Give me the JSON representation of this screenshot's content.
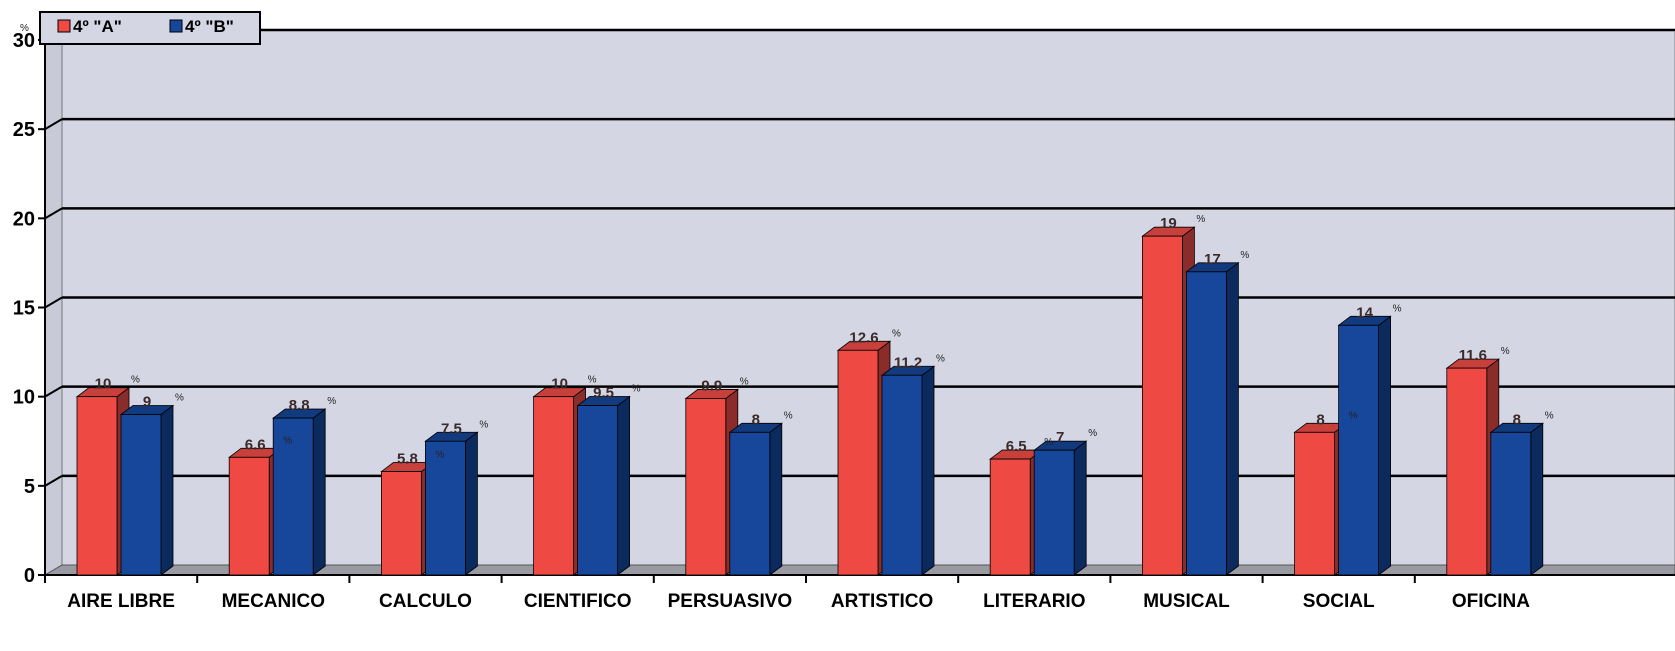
{
  "chart_data": {
    "type": "bar",
    "ylabel": "%",
    "ylim": [
      0,
      30
    ],
    "yticks": [
      0,
      5,
      10,
      15,
      20,
      25,
      30
    ],
    "grid": true,
    "legend_position": "top-left",
    "categories": [
      "AIRE LIBRE",
      "MECANICO",
      "CALCULO",
      "CIENTIFICO",
      "PERSUASIVO",
      "ARTISTICO",
      "LITERARIO",
      "MUSICAL",
      "SOCIAL",
      "OFICINA"
    ],
    "series": [
      {
        "name": "4º \"A\"",
        "color": "#ee4a43",
        "top_color": "#c8403c",
        "side_color": "#8a2c2a",
        "values": [
          10,
          6.6,
          5.8,
          10,
          9.9,
          12.6,
          6.5,
          19,
          8,
          11.6
        ],
        "labels": [
          "10",
          "6.6",
          "5.8",
          "10",
          "9.9",
          "12.6",
          "6.5",
          "19",
          "8",
          "11.6"
        ]
      },
      {
        "name": "4º \"B\"",
        "color": "#17479a",
        "top_color": "#123a7e",
        "side_color": "#0b2a5e",
        "values": [
          9,
          8.8,
          7.5,
          9.5,
          8,
          11.2,
          7,
          17,
          14,
          8
        ],
        "labels": [
          "9",
          "8.8",
          "7.5",
          "9.5",
          "8",
          "11.2",
          "7",
          "17",
          "14",
          "8"
        ]
      }
    ],
    "plot_background": "#d4d6e4",
    "floor_color": "#9a9aa2"
  }
}
